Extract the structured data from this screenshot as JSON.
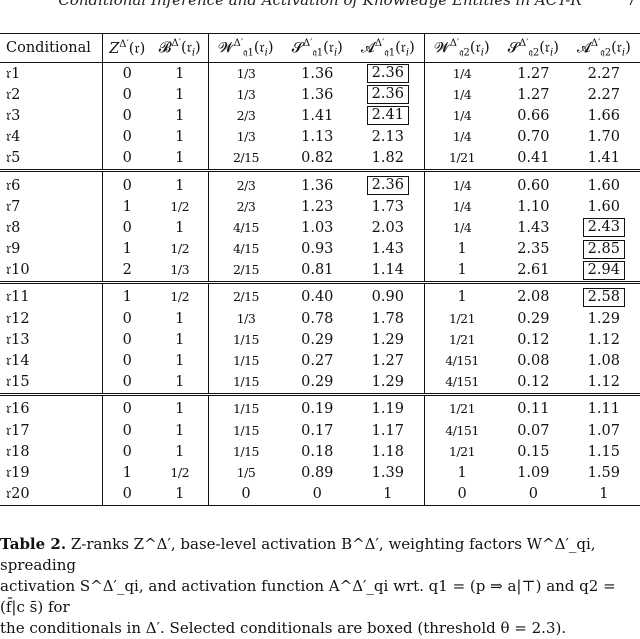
{
  "running_header": "Conditional Inference and Activation of Knowledge Entities in ACT-R",
  "table": {
    "headers": [
      "Conditional",
      "Z^Δ′(r)",
      "B^Δ′(r_i)",
      "W^Δ′_q1(r_i)",
      "S^Δ′_q1(r_i)",
      "A^Δ′_q1(r_i)",
      "W^Δ′_q2(r_i)",
      "S^Δ′_q2(r_i)",
      "A^Δ′_q2(r_i)"
    ],
    "rows": [
      {
        "id": "𝔯1",
        "z": "0",
        "b": "1",
        "w1": "1/3",
        "s1": "1.36",
        "a1": "2.36",
        "a1_boxed": true,
        "w2": "1/4",
        "s2": "1.27",
        "a2": "2.27",
        "a2_boxed": false
      },
      {
        "id": "𝔯2",
        "z": "0",
        "b": "1",
        "w1": "1/3",
        "s1": "1.36",
        "a1": "2.36",
        "a1_boxed": true,
        "w2": "1/4",
        "s2": "1.27",
        "a2": "2.27",
        "a2_boxed": false
      },
      {
        "id": "𝔯3",
        "z": "0",
        "b": "1",
        "w1": "2/3",
        "s1": "1.41",
        "a1": "2.41",
        "a1_boxed": true,
        "w2": "1/4",
        "s2": "0.66",
        "a2": "1.66",
        "a2_boxed": false
      },
      {
        "id": "𝔯4",
        "z": "0",
        "b": "1",
        "w1": "1/3",
        "s1": "1.13",
        "a1": "2.13",
        "a1_boxed": false,
        "w2": "1/4",
        "s2": "0.70",
        "a2": "1.70",
        "a2_boxed": false
      },
      {
        "id": "𝔯5",
        "z": "0",
        "b": "1",
        "w1": "2/15",
        "s1": "0.82",
        "a1": "1.82",
        "a1_boxed": false,
        "w2": "1/21",
        "s2": "0.41",
        "a2": "1.41",
        "a2_boxed": false
      },
      {
        "id": "𝔯6",
        "z": "0",
        "b": "1",
        "w1": "2/3",
        "s1": "1.36",
        "a1": "2.36",
        "a1_boxed": true,
        "w2": "1/4",
        "s2": "0.60",
        "a2": "1.60",
        "a2_boxed": false
      },
      {
        "id": "𝔯7",
        "z": "1",
        "b": "1/2",
        "w1": "2/3",
        "s1": "1.23",
        "a1": "1.73",
        "a1_boxed": false,
        "w2": "1/4",
        "s2": "1.10",
        "a2": "1.60",
        "a2_boxed": false
      },
      {
        "id": "𝔯8",
        "z": "0",
        "b": "1",
        "w1": "4/15",
        "s1": "1.03",
        "a1": "2.03",
        "a1_boxed": false,
        "w2": "1/4",
        "s2": "1.43",
        "a2": "2.43",
        "a2_boxed": true
      },
      {
        "id": "𝔯9",
        "z": "1",
        "b": "1/2",
        "w1": "4/15",
        "s1": "0.93",
        "a1": "1.43",
        "a1_boxed": false,
        "w2": "1",
        "s2": "2.35",
        "a2": "2.85",
        "a2_boxed": true
      },
      {
        "id": "𝔯10",
        "z": "2",
        "b": "1/3",
        "w1": "2/15",
        "s1": "0.81",
        "a1": "1.14",
        "a1_boxed": false,
        "w2": "1",
        "s2": "2.61",
        "a2": "2.94",
        "a2_boxed": true
      },
      {
        "id": "𝔯11",
        "z": "1",
        "b": "1/2",
        "w1": "2/15",
        "s1": "0.40",
        "a1": "0.90",
        "a1_boxed": false,
        "w2": "1",
        "s2": "2.08",
        "a2": "2.58",
        "a2_boxed": true
      },
      {
        "id": "𝔯12",
        "z": "0",
        "b": "1",
        "w1": "1/3",
        "s1": "0.78",
        "a1": "1.78",
        "a1_boxed": false,
        "w2": "1/21",
        "s2": "0.29",
        "a2": "1.29",
        "a2_boxed": false
      },
      {
        "id": "𝔯13",
        "z": "0",
        "b": "1",
        "w1": "1/15",
        "s1": "0.29",
        "a1": "1.29",
        "a1_boxed": false,
        "w2": "1/21",
        "s2": "0.12",
        "a2": "1.12",
        "a2_boxed": false
      },
      {
        "id": "𝔯14",
        "z": "0",
        "b": "1",
        "w1": "1/15",
        "s1": "0.27",
        "a1": "1.27",
        "a1_boxed": false,
        "w2": "4/151",
        "s2": "0.08",
        "a2": "1.08",
        "a2_boxed": false
      },
      {
        "id": "𝔯15",
        "z": "0",
        "b": "1",
        "w1": "1/15",
        "s1": "0.29",
        "a1": "1.29",
        "a1_boxed": false,
        "w2": "4/151",
        "s2": "0.12",
        "a2": "1.12",
        "a2_boxed": false
      },
      {
        "id": "𝔯16",
        "z": "0",
        "b": "1",
        "w1": "1/15",
        "s1": "0.19",
        "a1": "1.19",
        "a1_boxed": false,
        "w2": "1/21",
        "s2": "0.11",
        "a2": "1.11",
        "a2_boxed": false
      },
      {
        "id": "𝔯17",
        "z": "0",
        "b": "1",
        "w1": "1/15",
        "s1": "0.17",
        "a1": "1.17",
        "a1_boxed": false,
        "w2": "4/151",
        "s2": "0.07",
        "a2": "1.07",
        "a2_boxed": false
      },
      {
        "id": "𝔯18",
        "z": "0",
        "b": "1",
        "w1": "1/15",
        "s1": "0.18",
        "a1": "1.18",
        "a1_boxed": false,
        "w2": "1/21",
        "s2": "0.15",
        "a2": "1.15",
        "a2_boxed": false
      },
      {
        "id": "𝔯19",
        "z": "1",
        "b": "1/2",
        "w1": "1/5",
        "s1": "0.89",
        "a1": "1.39",
        "a1_boxed": false,
        "w2": "1",
        "s2": "1.09",
        "a2": "1.59",
        "a2_boxed": false
      },
      {
        "id": "𝔯20",
        "z": "0",
        "b": "1",
        "w1": "0",
        "s1": "0",
        "a1": "1",
        "a1_boxed": false,
        "w2": "0",
        "s2": "0",
        "a2": "1",
        "a2_boxed": false
      }
    ],
    "group_starts": [
      5,
      10,
      15
    ]
  },
  "caption": {
    "label": "Table 2.",
    "text_line1": "Z-ranks Z^Δ′, base-level activation B^Δ′, weighting factors W^Δ′_qi, spreading",
    "text_line2": "activation S^Δ′_qi, and activation function A^Δ′_qi wrt. q1 = (p ⇒ a|⊤) and q2 = (f̄|c s̄) for",
    "text_line3": "the conditionals in Δ′. Selected conditionals are boxed (threshold θ = 2.3)."
  }
}
